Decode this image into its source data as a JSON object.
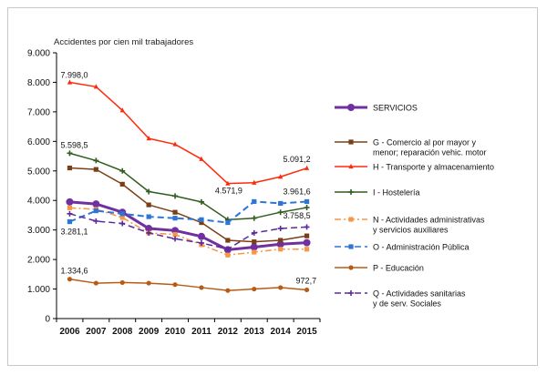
{
  "chart_data": {
    "type": "line",
    "title": "",
    "ylabel": "Accidentes por cien mil trabajadores",
    "xlabel": "",
    "ylim": [
      0,
      9000
    ],
    "yticks": [
      0,
      1000,
      2000,
      3000,
      4000,
      5000,
      6000,
      7000,
      8000,
      9000
    ],
    "ytick_labels": [
      "0",
      "1.000",
      "2.000",
      "3.000",
      "4.000",
      "5.000",
      "6.000",
      "7.000",
      "8.000",
      "9.000"
    ],
    "x": [
      "2006",
      "2007",
      "2008",
      "2009",
      "2010",
      "2011",
      "2012",
      "2013",
      "2014",
      "2015"
    ],
    "grid": false,
    "legend_position": "right",
    "series": [
      {
        "name": "SERVICIOS",
        "color": "#7030a0",
        "dash": "solid",
        "marker": "circle",
        "width": 3,
        "values": [
          3950,
          3880,
          3600,
          3050,
          2980,
          2780,
          2330,
          2420,
          2520,
          2570
        ]
      },
      {
        "name": "G - Comercio al por mayor y menor; reparación vehic. motor",
        "color": "#7b3f18",
        "dash": "solid",
        "marker": "square",
        "width": 1.5,
        "values": [
          5100,
          5050,
          4550,
          3850,
          3600,
          3250,
          2650,
          2600,
          2650,
          2800
        ]
      },
      {
        "name": "H - Transporte y almacenamiento",
        "color": "#ff2a0a",
        "dash": "solid",
        "marker": "triangle",
        "width": 1.5,
        "values": [
          7998.0,
          7850,
          7050,
          6100,
          5900,
          5400,
          4571.9,
          4600,
          4800,
          5091.2
        ]
      },
      {
        "name": "I - Hostelería",
        "color": "#2f5d1e",
        "dash": "solid",
        "marker": "plus",
        "width": 1.5,
        "values": [
          5598.5,
          5350,
          5000,
          4300,
          4150,
          3950,
          3350,
          3400,
          3600,
          3758.5
        ]
      },
      {
        "name": "N - Actividades administrativas y servicios auxiliares",
        "color": "#f79646",
        "dash": "dashdot",
        "marker": "square",
        "width": 1.5,
        "values": [
          3750,
          3700,
          3420,
          2900,
          2850,
          2500,
          2150,
          2250,
          2350,
          2350
        ]
      },
      {
        "name": "O - Administración Pública",
        "color": "#2e75d6",
        "dash": "dash",
        "marker": "square",
        "width": 2,
        "values": [
          3281.1,
          3650,
          3550,
          3450,
          3400,
          3350,
          3250,
          3961.6,
          3900,
          3961.6
        ]
      },
      {
        "name": "P - Educación",
        "color": "#b85b14",
        "dash": "solid",
        "marker": "circle",
        "width": 1.5,
        "values": [
          1334.6,
          1200,
          1220,
          1200,
          1150,
          1050,
          950,
          1000,
          1050,
          972.7
        ]
      },
      {
        "name": "Q - Actividades sanitarias y de serv. Sociales",
        "color": "#5b2a9a",
        "dash": "dash",
        "marker": "plus",
        "width": 1.5,
        "values": [
          3550,
          3300,
          3220,
          2900,
          2700,
          2560,
          2350,
          2900,
          3050,
          3100
        ]
      }
    ],
    "annotations": [
      {
        "text": "7.998,0",
        "series": 2,
        "index": 0
      },
      {
        "text": "5.598,5",
        "series": 3,
        "index": 0
      },
      {
        "text": "3.281,1",
        "series": 5,
        "index": 0
      },
      {
        "text": "1.334,6",
        "series": 6,
        "index": 0
      },
      {
        "text": "4.571,9",
        "series": 2,
        "index": 6
      },
      {
        "text": "5.091,2",
        "series": 2,
        "index": 9
      },
      {
        "text": "3.961,6",
        "series": 5,
        "index": 9
      },
      {
        "text": "3.758,5",
        "series": 3,
        "index": 9
      },
      {
        "text": "972,7",
        "series": 6,
        "index": 9
      }
    ],
    "legend": [
      {
        "series": 0,
        "lines": [
          "SERVICIOS"
        ],
        "bold": false
      },
      {
        "series": 1,
        "lines": [
          "G - Comercio al por mayor y",
          "menor; reparación vehic. motor"
        ]
      },
      {
        "series": 2,
        "lines": [
          "H - Transporte y almacenamiento"
        ]
      },
      {
        "series": 3,
        "lines": [
          "I - Hostelería"
        ]
      },
      {
        "series": 4,
        "lines": [
          "N - Actividades administrativas",
          "y servicios auxiliares"
        ]
      },
      {
        "series": 5,
        "lines": [
          "O - Administración Pública"
        ]
      },
      {
        "series": 6,
        "lines": [
          "P - Educación"
        ]
      },
      {
        "series": 7,
        "lines": [
          "Q - Actividades sanitarias",
          "y de serv. Sociales"
        ]
      }
    ]
  }
}
